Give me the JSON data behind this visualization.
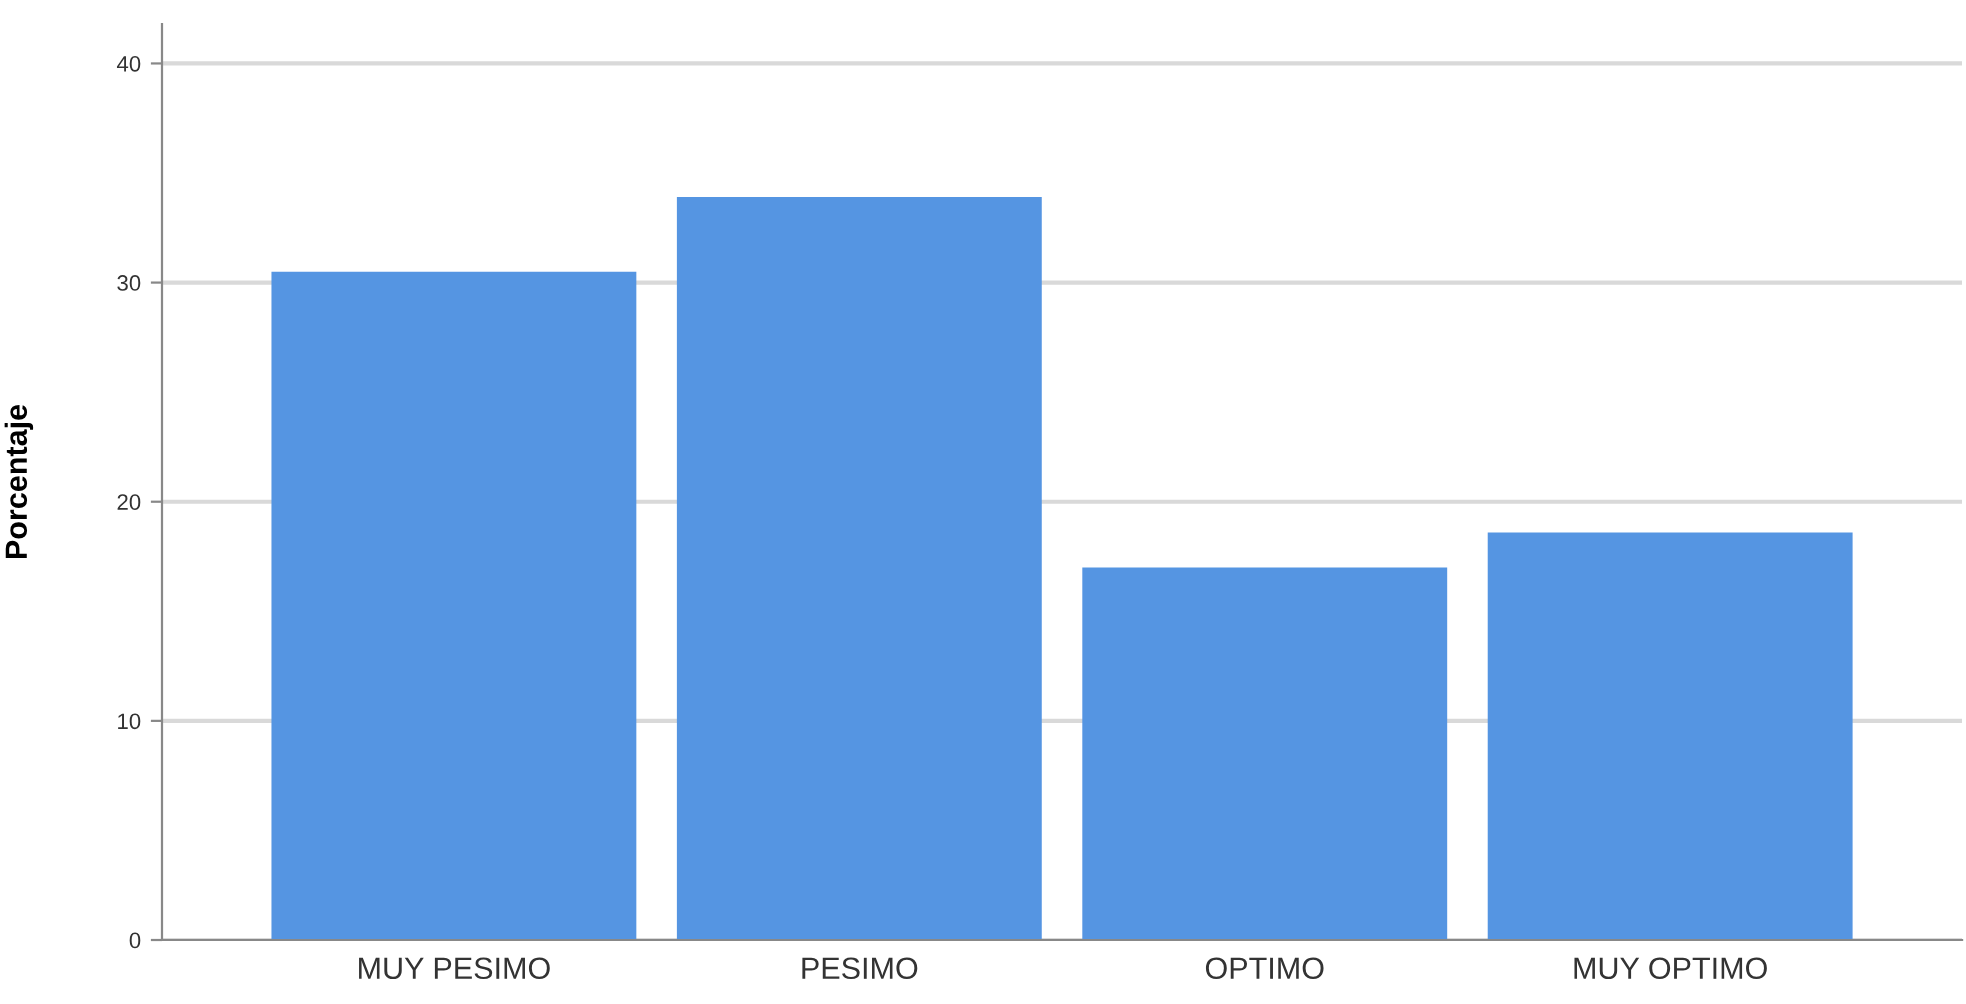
{
  "chart_data": {
    "type": "bar",
    "ylabel": "Porcentaje",
    "categories": [
      "MUY PESIMO",
      "PESIMO",
      "OPTIMO",
      "MUY OPTIMO"
    ],
    "values": [
      30.5,
      33.9,
      17.0,
      18.6
    ],
    "color": "#5595e2",
    "ylim": [
      0,
      41.8
    ],
    "yticks": [
      0,
      10,
      20,
      30,
      40
    ],
    "grid": "y"
  }
}
